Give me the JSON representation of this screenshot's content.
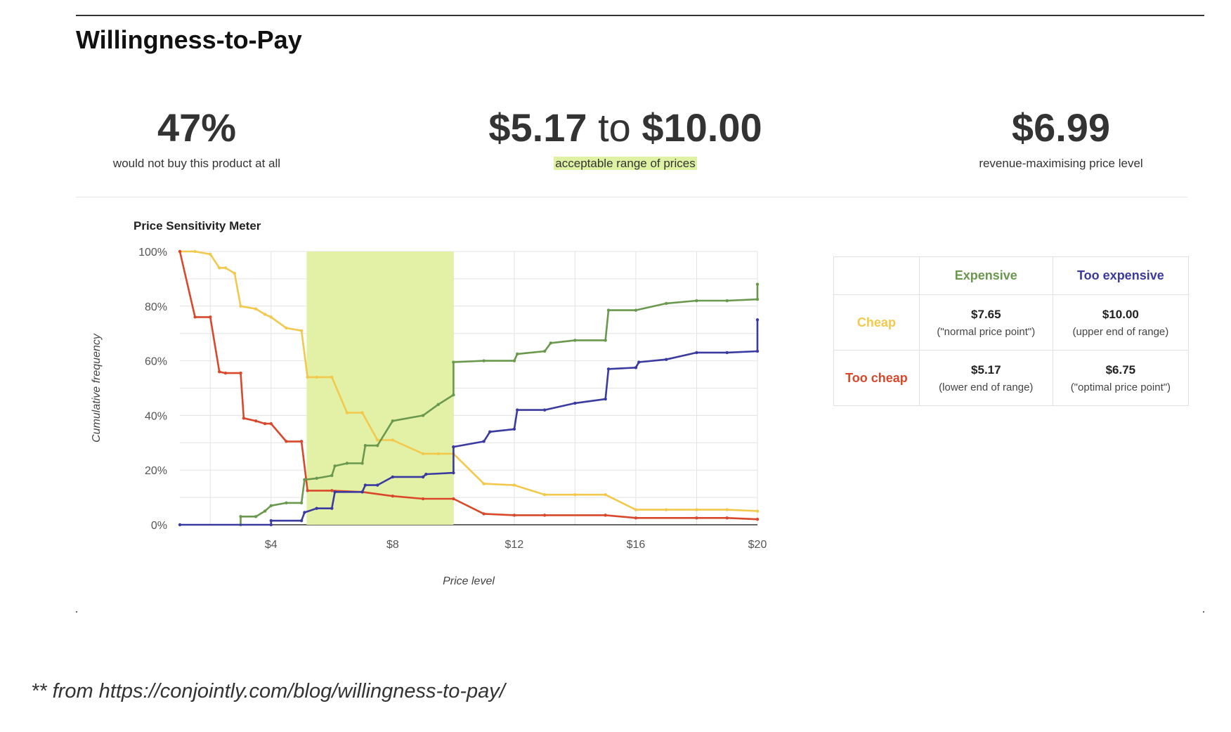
{
  "title": "Willingness-to-Pay",
  "stats": {
    "left": {
      "value": "47%",
      "label": "would not buy this product at all"
    },
    "middle": {
      "value_low": "$5.17",
      "joiner": "to",
      "value_high": "$10.00",
      "label": "acceptable range of prices"
    },
    "right": {
      "value": "$6.99",
      "label": "revenue-maximising price level"
    }
  },
  "colors": {
    "too_cheap": "#d9482b",
    "cheap": "#f2c94c",
    "expensive": "#6a994e",
    "too_expensive": "#3a3aa0",
    "band": "#e3f1a7",
    "highlight": "#dff1a3"
  },
  "chart_data": {
    "type": "line",
    "title": "Price Sensitivity Meter",
    "xlabel": "Price level",
    "ylabel": "Cumulative frequency",
    "xlim": [
      1,
      20
    ],
    "ylim": [
      0,
      100
    ],
    "x_ticks": [
      4,
      8,
      12,
      16,
      20
    ],
    "x_tick_labels": [
      "$4",
      "$8",
      "$12",
      "$16",
      "$20"
    ],
    "y_ticks": [
      0,
      20,
      40,
      60,
      80,
      100
    ],
    "y_tick_labels": [
      "0%",
      "20%",
      "40%",
      "60%",
      "80%",
      "100%"
    ],
    "grid": true,
    "shaded_range": [
      5.17,
      10.0
    ],
    "series": [
      {
        "key": "cheap",
        "color": "#f2c94c",
        "points": [
          [
            1,
            100
          ],
          [
            1.5,
            100
          ],
          [
            2,
            99
          ],
          [
            2.3,
            94
          ],
          [
            2.5,
            94
          ],
          [
            2.8,
            92
          ],
          [
            3,
            80
          ],
          [
            3.5,
            79
          ],
          [
            3.8,
            77
          ],
          [
            4,
            76
          ],
          [
            4.5,
            72
          ],
          [
            5,
            71
          ],
          [
            5.2,
            54
          ],
          [
            5.5,
            54
          ],
          [
            6,
            54
          ],
          [
            6.5,
            41
          ],
          [
            7,
            41
          ],
          [
            7.5,
            31
          ],
          [
            8,
            31
          ],
          [
            9,
            26
          ],
          [
            9.5,
            26
          ],
          [
            10,
            26
          ],
          [
            11,
            15
          ],
          [
            12,
            14.5
          ],
          [
            13,
            11
          ],
          [
            14,
            11
          ],
          [
            15,
            11
          ],
          [
            16,
            5.5
          ],
          [
            17,
            5.5
          ],
          [
            18,
            5.5
          ],
          [
            19,
            5.5
          ],
          [
            20,
            5
          ]
        ]
      },
      {
        "key": "too_cheap",
        "color": "#d9482b",
        "points": [
          [
            1,
            100
          ],
          [
            1.5,
            76
          ],
          [
            2,
            76
          ],
          [
            2.3,
            56
          ],
          [
            2.5,
            55.5
          ],
          [
            3,
            55.5
          ],
          [
            3.1,
            39
          ],
          [
            3.5,
            38
          ],
          [
            3.8,
            37
          ],
          [
            4,
            37
          ],
          [
            4.5,
            30.5
          ],
          [
            5,
            30.5
          ],
          [
            5.2,
            12.5
          ],
          [
            6,
            12.5
          ],
          [
            7,
            12
          ],
          [
            8,
            10.5
          ],
          [
            9,
            9.5
          ],
          [
            10,
            9.5
          ],
          [
            11,
            4
          ],
          [
            12,
            3.5
          ],
          [
            13,
            3.5
          ],
          [
            15,
            3.5
          ],
          [
            16,
            2.5
          ],
          [
            18,
            2.5
          ],
          [
            19,
            2.5
          ],
          [
            20,
            2
          ]
        ]
      },
      {
        "key": "expensive",
        "color": "#6a994e",
        "points": [
          [
            3,
            0
          ],
          [
            3,
            3
          ],
          [
            3.5,
            3
          ],
          [
            3.8,
            5
          ],
          [
            4,
            7
          ],
          [
            4.5,
            8
          ],
          [
            5,
            8
          ],
          [
            5.1,
            16.5
          ],
          [
            5.5,
            17
          ],
          [
            6,
            18
          ],
          [
            6.1,
            21.5
          ],
          [
            6.5,
            22.5
          ],
          [
            7,
            22.5
          ],
          [
            7.1,
            29
          ],
          [
            7.5,
            29
          ],
          [
            8,
            38
          ],
          [
            9,
            40
          ],
          [
            9.5,
            44
          ],
          [
            10,
            47.5
          ],
          [
            10,
            59.5
          ],
          [
            11,
            60
          ],
          [
            12,
            60
          ],
          [
            12.1,
            62.5
          ],
          [
            13,
            63.5
          ],
          [
            13.2,
            66.5
          ],
          [
            14,
            67.5
          ],
          [
            15,
            67.5
          ],
          [
            15.1,
            78.5
          ],
          [
            16,
            78.5
          ],
          [
            17,
            81
          ],
          [
            18,
            82
          ],
          [
            19,
            82
          ],
          [
            20,
            82.5
          ],
          [
            20,
            88
          ]
        ]
      },
      {
        "key": "too_expensive",
        "color": "#3a3aa0",
        "points": [
          [
            1,
            0
          ],
          [
            4,
            0
          ],
          [
            4,
            1.5
          ],
          [
            5,
            1.5
          ],
          [
            5.1,
            4.5
          ],
          [
            5.5,
            6
          ],
          [
            6,
            6
          ],
          [
            6.1,
            12
          ],
          [
            7,
            12
          ],
          [
            7.1,
            14.5
          ],
          [
            7.5,
            14.5
          ],
          [
            8,
            17.5
          ],
          [
            9,
            17.5
          ],
          [
            9.1,
            18.5
          ],
          [
            10,
            19
          ],
          [
            10,
            28.5
          ],
          [
            11,
            30.5
          ],
          [
            11.2,
            34
          ],
          [
            12,
            35
          ],
          [
            12.1,
            42
          ],
          [
            13,
            42
          ],
          [
            14,
            44.5
          ],
          [
            15,
            46
          ],
          [
            15.1,
            57
          ],
          [
            16,
            57.5
          ],
          [
            16.1,
            59.5
          ],
          [
            17,
            60.5
          ],
          [
            18,
            63
          ],
          [
            19,
            63
          ],
          [
            20,
            63.5
          ],
          [
            20,
            75
          ]
        ]
      }
    ]
  },
  "table": {
    "headers": [
      "",
      "Expensive",
      "Too expensive"
    ],
    "rows": [
      {
        "label": "Cheap",
        "cells": [
          {
            "value": "$7.65",
            "note": "(\"normal price point\")"
          },
          {
            "value": "$10.00",
            "note": "(upper end of range)"
          }
        ]
      },
      {
        "label": "Too cheap",
        "cells": [
          {
            "value": "$5.17",
            "note": "(lower end of range)"
          },
          {
            "value": "$6.75",
            "note": "(\"optimal price point\")"
          }
        ]
      }
    ]
  },
  "footnote": "** from https://conjointly.com/blog/willingness-to-pay/"
}
